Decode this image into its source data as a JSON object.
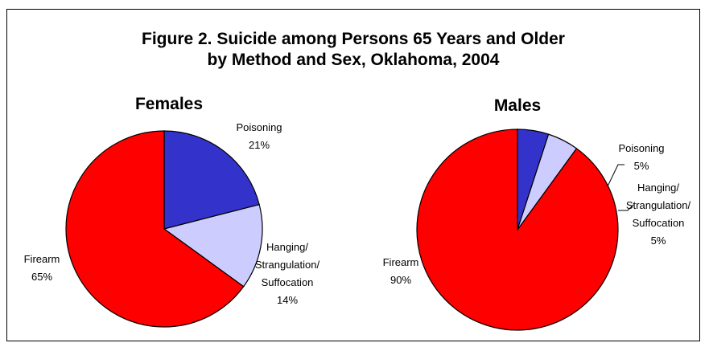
{
  "title_line1": "Figure 2. Suicide among Persons 65 Years and Older",
  "title_line2": "by Method and Sex, Oklahoma, 2004",
  "chart_data": [
    {
      "type": "pie",
      "title": "Females",
      "slices": [
        {
          "label": [
            "Poisoning"
          ],
          "pct_label": "21%",
          "value": 21,
          "color": "#3333cc"
        },
        {
          "label": [
            "Hanging/",
            "Strangulation/",
            "Suffocation"
          ],
          "pct_label": "14%",
          "value": 14,
          "color": "#ccccff"
        },
        {
          "label": [
            "Firearm"
          ],
          "pct_label": "65%",
          "value": 65,
          "color": "#ff0000"
        }
      ]
    },
    {
      "type": "pie",
      "title": "Males",
      "slices": [
        {
          "label": [
            "Poisoning"
          ],
          "pct_label": "5%",
          "value": 5,
          "color": "#3333cc"
        },
        {
          "label": [
            "Hanging/",
            "Strangulation/",
            "Suffocation"
          ],
          "pct_label": "5%",
          "value": 5,
          "color": "#ccccff"
        },
        {
          "label": [
            "Firearm"
          ],
          "pct_label": "90%",
          "value": 90,
          "color": "#ff0000"
        }
      ]
    }
  ]
}
